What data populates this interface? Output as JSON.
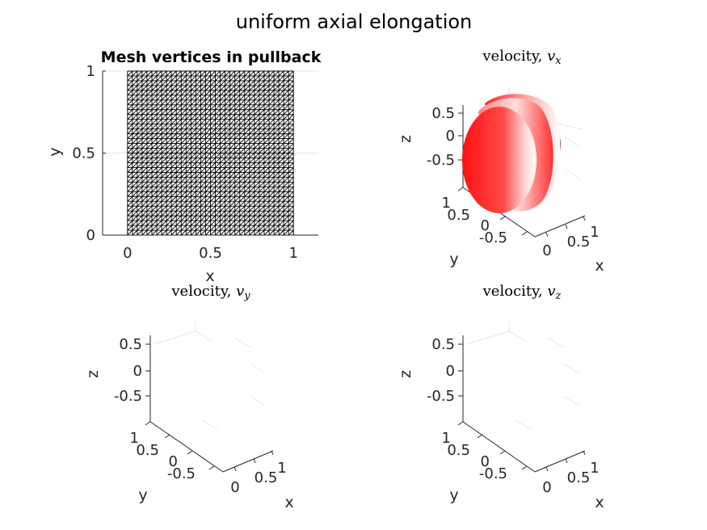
{
  "figure": {
    "suptitle": "uniform axial elongation"
  },
  "chart_data": [
    {
      "type": "mesh",
      "title": "Mesh vertices in pullback",
      "xlabel": "x",
      "ylabel": "y",
      "xlim": [
        -0.15,
        1.15
      ],
      "ylim": [
        0,
        1
      ],
      "x_ticks": [
        "0",
        "0.5",
        "1"
      ],
      "y_ticks": [
        "0",
        "0.5",
        "1"
      ],
      "mesh_domain": {
        "x": [
          0,
          1
        ],
        "y": [
          0,
          1
        ]
      },
      "grid": true
    },
    {
      "type": "surface3d",
      "title_text": "velocity, ",
      "title_symbol": "v",
      "title_subscript": "x",
      "xlabel": "x",
      "ylabel": "y",
      "zlabel": "z",
      "x_ticks": [
        "0",
        "0.5",
        "1"
      ],
      "y_ticks": [
        "-0.5",
        "0",
        "0.5",
        "1"
      ],
      "z_ticks": [
        "-0.5",
        "0",
        "0.5"
      ],
      "colors": {
        "light": "#ffffff",
        "mid": "#ff0000",
        "dark": "#8b0000"
      },
      "grid": true
    },
    {
      "type": "surface3d",
      "title_text": "velocity, ",
      "title_symbol": "v",
      "title_subscript": "y",
      "xlabel": "x",
      "ylabel": "y",
      "zlabel": "z",
      "x_ticks": [
        "0",
        "0.5",
        "1"
      ],
      "y_ticks": [
        "-0.5",
        "0",
        "0.5",
        "1"
      ],
      "z_ticks": [
        "-0.5",
        "0",
        "0.5"
      ],
      "grid": true
    },
    {
      "type": "surface3d",
      "title_text": "velocity, ",
      "title_symbol": "v",
      "title_subscript": "z",
      "xlabel": "x",
      "ylabel": "y",
      "zlabel": "z",
      "x_ticks": [
        "0",
        "0.5",
        "1"
      ],
      "y_ticks": [
        "-0.5",
        "0",
        "0.5",
        "1"
      ],
      "z_ticks": [
        "-0.5",
        "0",
        "0.5"
      ],
      "grid": true
    }
  ]
}
